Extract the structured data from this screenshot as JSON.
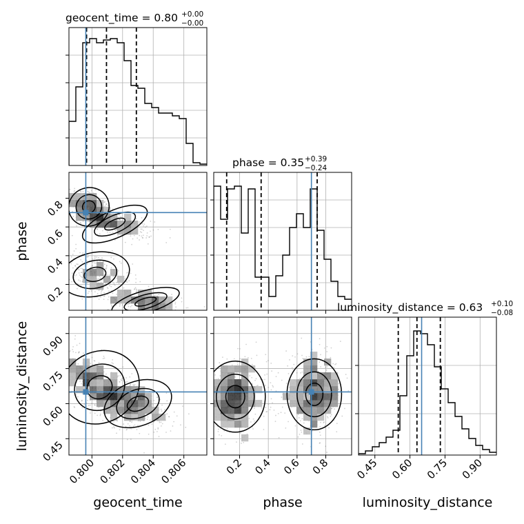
{
  "chart_data": {
    "type": "corner",
    "params": [
      "geocent_time",
      "phase",
      "luminosity_distance"
    ],
    "truths": {
      "geocent_time": 0.7996,
      "phase": 0.7,
      "luminosity_distance": 0.65
    },
    "titles": [
      {
        "param": "geocent_time",
        "main": "geocent_time = 0.80",
        "plus": "+0.00",
        "minus": "−0.00"
      },
      {
        "param": "phase",
        "main": "phase = 0.35",
        "plus": "+0.39",
        "minus": "−0.24"
      },
      {
        "param": "luminosity_distance",
        "main": "luminosity_distance = 0.63",
        "plus": "+0.10",
        "minus": "−0.08"
      }
    ],
    "axis_labels": {
      "x": [
        "geocent_time",
        "phase",
        "luminosity_distance"
      ],
      "y": [
        "phase",
        "luminosity_distance"
      ]
    },
    "ranges": {
      "geocent_time": [
        0.7985,
        0.8075
      ],
      "phase": [
        0.02,
        0.98
      ],
      "luminosity_distance": [
        0.38,
        0.97
      ]
    },
    "ticks": {
      "geocent_time": [
        "0.800",
        "0.802",
        "0.804",
        "0.806"
      ],
      "phase": [
        "0.2",
        "0.4",
        "0.6",
        "0.8"
      ],
      "luminosity_distance": [
        "0.45",
        "0.60",
        "0.75",
        "0.90"
      ]
    },
    "hist_geocent_time": {
      "quantiles": [
        0.79965,
        0.80095,
        0.8029
      ],
      "bin_width": 0.00045,
      "counts": [
        0.32,
        0.57,
        0.89,
        0.92,
        0.89,
        0.91,
        0.92,
        0.89,
        0.76,
        0.58,
        0.56,
        0.45,
        0.42,
        0.38,
        0.38,
        0.36,
        0.34,
        0.16,
        0.02,
        0.01
      ]
    },
    "hist_phase": {
      "quantiles": [
        0.11,
        0.35,
        0.74
      ],
      "bin_width": 0.048,
      "counts": [
        0.9,
        0.66,
        0.88,
        0.9,
        0.56,
        0.88,
        0.24,
        0.24,
        0.1,
        0.25,
        0.4,
        0.6,
        0.7,
        0.6,
        0.88,
        0.58,
        0.37,
        0.21,
        0.1,
        0.08
      ]
    },
    "hist_luminosity_distance": {
      "quantiles": [
        0.55,
        0.63,
        0.73
      ],
      "bin_width": 0.0295,
      "counts": [
        0.01,
        0.03,
        0.06,
        0.09,
        0.13,
        0.18,
        0.43,
        0.72,
        0.9,
        0.88,
        0.8,
        0.64,
        0.48,
        0.38,
        0.28,
        0.19,
        0.12,
        0.07,
        0.04,
        0.02
      ]
    },
    "scatter_phase_vs_geocent_time": {
      "x_param": "geocent_time",
      "y_param": "phase",
      "clusters": [
        {
          "cx": 0.7998,
          "cy": 0.74,
          "sx": 0.0007,
          "sy": 0.07,
          "n": 320,
          "rho": -0.5
        },
        {
          "cx": 0.8015,
          "cy": 0.62,
          "sx": 0.0012,
          "sy": 0.05,
          "n": 300,
          "rho": -0.6
        },
        {
          "cx": 0.8002,
          "cy": 0.27,
          "sx": 0.0012,
          "sy": 0.08,
          "n": 320,
          "rho": -0.3
        },
        {
          "cx": 0.8035,
          "cy": 0.08,
          "sx": 0.0012,
          "sy": 0.04,
          "n": 320,
          "rho": -0.4
        }
      ]
    },
    "scatter_luminosity_distance_vs_geocent_time": {
      "x_param": "geocent_time",
      "y_param": "luminosity_distance",
      "clusters": [
        {
          "cx": 0.8005,
          "cy": 0.67,
          "sx": 0.0014,
          "sy": 0.08,
          "n": 700,
          "rho": -0.7
        },
        {
          "cx": 0.803,
          "cy": 0.6,
          "sx": 0.0012,
          "sy": 0.05,
          "n": 300,
          "rho": -0.5
        }
      ]
    },
    "scatter_luminosity_distance_vs_phase": {
      "x_param": "phase",
      "y_param": "luminosity_distance",
      "clusters": [
        {
          "cx": 0.17,
          "cy": 0.63,
          "sx": 0.11,
          "sy": 0.08,
          "n": 520,
          "rho": 0.0
        },
        {
          "cx": 0.72,
          "cy": 0.64,
          "sx": 0.1,
          "sy": 0.08,
          "n": 480,
          "rho": 0.0
        }
      ]
    },
    "colors": {
      "truth": "#4682b4",
      "line": "#000000",
      "grid": "#b0b0b0",
      "points": "#555555"
    }
  }
}
